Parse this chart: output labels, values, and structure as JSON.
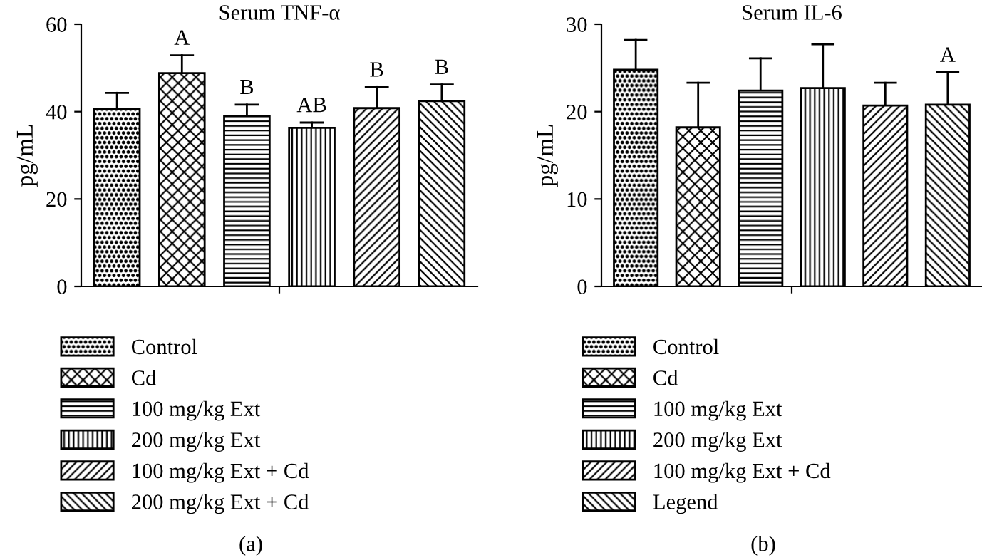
{
  "chart_data": [
    {
      "type": "bar",
      "title": "Serum TNF-α",
      "ylabel": "pg/mL",
      "categories": [
        null
      ],
      "ylim": [
        0,
        60
      ],
      "yticks": [
        0,
        20,
        40,
        60
      ],
      "legend": "bottom",
      "grid": false,
      "annotations": [
        "(a)"
      ],
      "series": [
        {
          "name": "Control",
          "color": "#000000",
          "values": [
            40.6
          ],
          "errors": [
            [
              40.6,
              44.3
            ]
          ]
        },
        {
          "name": "Cd",
          "color": "#000000",
          "values": [
            48.8
          ],
          "errors": [
            [
              48.8,
              52.9
            ]
          ],
          "value_labels": [
            "A"
          ]
        },
        {
          "name": "100 mg/kg Ext",
          "color": "#000000",
          "values": [
            39.0
          ],
          "errors": [
            [
              39.0,
              41.6
            ]
          ],
          "value_labels": [
            "B"
          ]
        },
        {
          "name": "200 mg/kg Ext",
          "color": "#000000",
          "values": [
            36.3
          ],
          "errors": [
            [
              36.3,
              37.5
            ]
          ],
          "value_labels": [
            "AB"
          ]
        },
        {
          "name": "100 mg/kg Ext + Cd",
          "color": "#000000",
          "values": [
            40.8
          ],
          "errors": [
            [
              40.8,
              45.6
            ]
          ],
          "value_labels": [
            "B"
          ]
        },
        {
          "name": "200 mg/kg Ext + Cd",
          "color": "#000000",
          "values": [
            42.4
          ],
          "errors": [
            [
              42.4,
              46.2
            ]
          ],
          "value_labels": [
            "B"
          ]
        }
      ]
    },
    {
      "type": "bar",
      "title": "Serum IL-6",
      "ylabel": "pg/mL",
      "categories": [
        null
      ],
      "ylim": [
        0,
        30
      ],
      "yticks": [
        0,
        10,
        20,
        30
      ],
      "legend": "bottom",
      "grid": false,
      "annotations": [
        "(b)"
      ],
      "series": [
        {
          "name": "Control",
          "color": "#000000",
          "values": [
            24.8
          ],
          "errors": [
            [
              24.8,
              28.2
            ]
          ]
        },
        {
          "name": "Cd",
          "color": "#000000",
          "values": [
            18.2
          ],
          "errors": [
            [
              18.2,
              23.3
            ]
          ]
        },
        {
          "name": "100 mg/kg Ext",
          "color": "#000000",
          "values": [
            22.4
          ],
          "errors": [
            [
              22.4,
              26.1
            ]
          ]
        },
        {
          "name": "200 mg/kg Ext",
          "color": "#000000",
          "values": [
            22.7
          ],
          "errors": [
            [
              22.7,
              27.7
            ]
          ]
        },
        {
          "name": "100 mg/kg Ext + Cd",
          "color": "#000000",
          "values": [
            20.7
          ],
          "errors": [
            [
              20.7,
              23.3
            ]
          ]
        },
        {
          "name": "Legend",
          "color": "#000000",
          "values": [
            20.8
          ],
          "errors": [
            [
              20.8,
              24.5
            ]
          ],
          "value_labels": [
            "A"
          ]
        }
      ]
    }
  ]
}
